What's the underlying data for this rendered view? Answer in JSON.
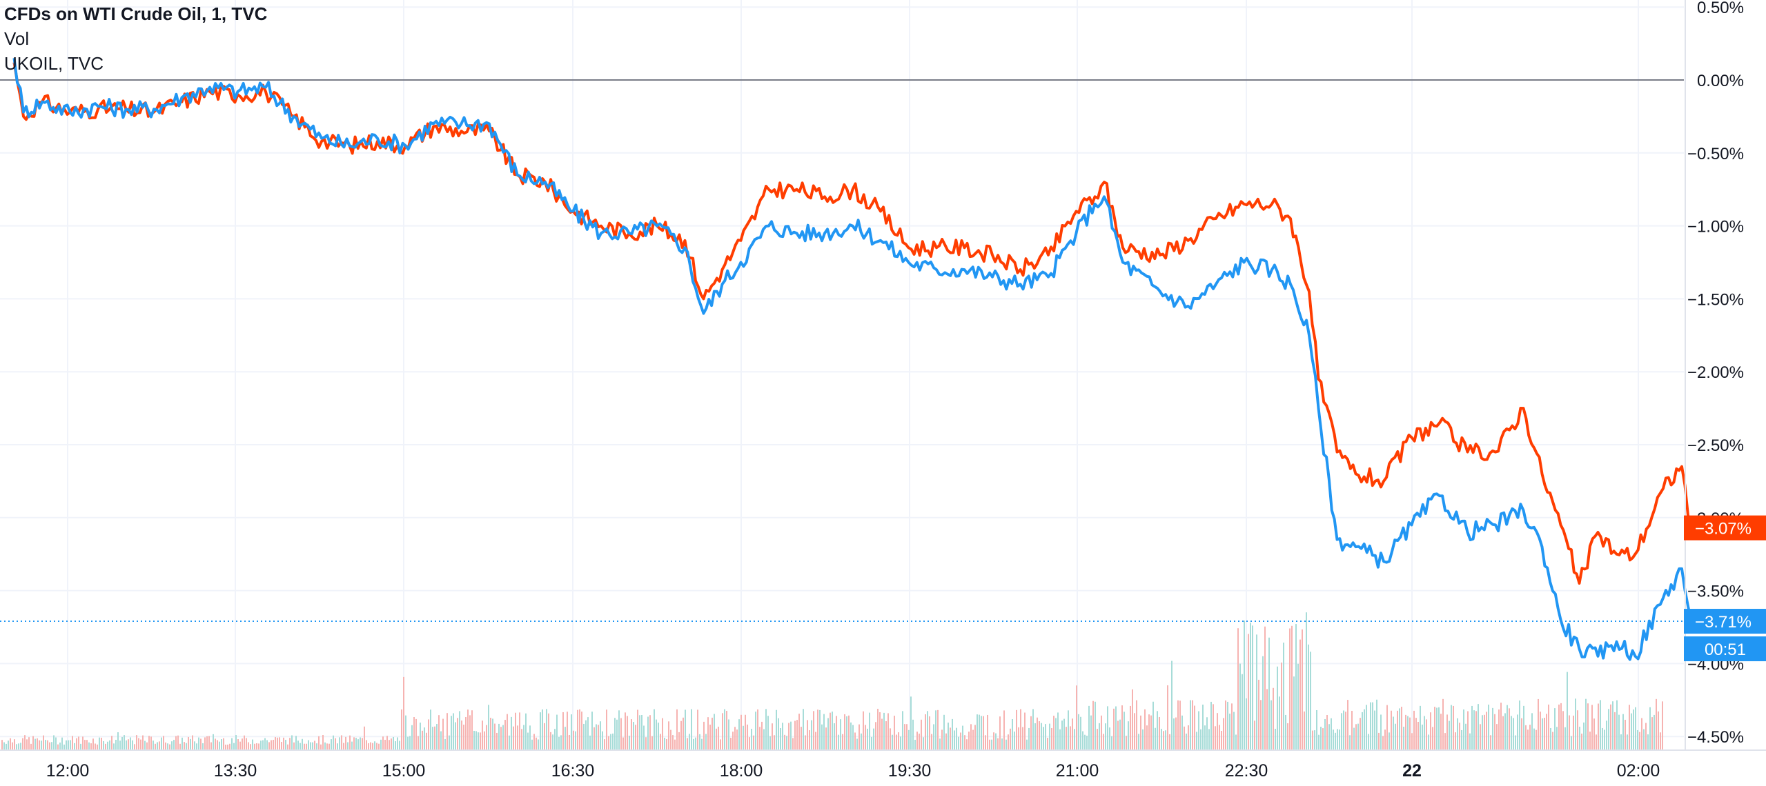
{
  "legend": {
    "title": "CFDs on WTI Crude Oil, 1, TVC",
    "volume": "Vol",
    "compare": "UKOIL, TVC"
  },
  "price_label_wti": "−3.71%",
  "price_label_ukoil": "−3.07%",
  "countdown": "00:51",
  "colors": {
    "wti": "#2196f3",
    "ukoil": "#ff3d00",
    "grid": "#f0f3fa",
    "axis_text": "#131722",
    "zero_line": "#787b86",
    "vol_up": "#a7dcd8",
    "vol_down": "#f6b3b1"
  },
  "chart_data": {
    "type": "line",
    "y_axis": {
      "unit": "%",
      "ticks": [
        "0.50%",
        "0.00%",
        "−0.50%",
        "−1.00%",
        "−1.50%",
        "−2.00%",
        "−2.50%",
        "−3.00%",
        "−3.50%",
        "−4.00%",
        "−4.50%"
      ],
      "values": [
        0.5,
        0.0,
        -0.5,
        -1.0,
        -1.5,
        -2.0,
        -2.5,
        -3.0,
        -3.5,
        -4.0,
        -4.5
      ],
      "range": [
        -4.55,
        0.55
      ]
    },
    "x_axis": {
      "ticks": [
        "12:00",
        "13:30",
        "15:00",
        "16:30",
        "18:00",
        "19:30",
        "21:00",
        "22:30",
        "22",
        "02:00"
      ],
      "bold_ticks": [
        "22"
      ]
    },
    "series": [
      {
        "name": "CFDs on WTI Crude Oil",
        "color": "#2196f3",
        "points": [
          [
            "11:15",
            0.15
          ],
          [
            "11:20",
            -0.22
          ],
          [
            "11:30",
            -0.15
          ],
          [
            "11:45",
            -0.22
          ],
          [
            "12:00",
            -0.18
          ],
          [
            "12:15",
            -0.2
          ],
          [
            "12:30",
            -0.2
          ],
          [
            "12:45",
            -0.12
          ],
          [
            "13:00",
            -0.05
          ],
          [
            "13:15",
            -0.08
          ],
          [
            "13:30",
            -0.05
          ],
          [
            "13:45",
            -0.25
          ],
          [
            "14:00",
            -0.4
          ],
          [
            "14:15",
            -0.45
          ],
          [
            "14:30",
            -0.4
          ],
          [
            "14:45",
            -0.45
          ],
          [
            "15:00",
            -0.3
          ],
          [
            "15:15",
            -0.3
          ],
          [
            "15:30",
            -0.3
          ],
          [
            "15:45",
            -0.65
          ],
          [
            "16:00",
            -0.7
          ],
          [
            "16:15",
            -0.9
          ],
          [
            "16:30",
            -1.05
          ],
          [
            "16:45",
            -1.05
          ],
          [
            "17:00",
            -1.0
          ],
          [
            "17:15",
            -1.15
          ],
          [
            "17:25",
            -1.6
          ],
          [
            "17:35",
            -1.4
          ],
          [
            "17:45",
            -1.25
          ],
          [
            "18:00",
            -1.0
          ],
          [
            "18:15",
            -1.05
          ],
          [
            "18:30",
            -1.05
          ],
          [
            "18:45",
            -1.0
          ],
          [
            "19:00",
            -1.1
          ],
          [
            "19:15",
            -1.25
          ],
          [
            "19:30",
            -1.3
          ],
          [
            "19:45",
            -1.3
          ],
          [
            "20:00",
            -1.35
          ],
          [
            "20:15",
            -1.4
          ],
          [
            "20:30",
            -1.35
          ],
          [
            "20:45",
            -1.05
          ],
          [
            "20:55",
            -0.85
          ],
          [
            "21:00",
            -0.8
          ],
          [
            "21:10",
            -1.25
          ],
          [
            "21:30",
            -1.45
          ],
          [
            "21:45",
            -1.55
          ],
          [
            "22:00",
            -1.4
          ],
          [
            "22:15",
            -1.25
          ],
          [
            "22:30",
            -1.3
          ],
          [
            "22:40",
            -1.4
          ],
          [
            "22:50",
            -1.75
          ],
          [
            "22:55",
            -2.25
          ],
          [
            "23:05",
            -3.15
          ],
          [
            "23:15",
            -3.2
          ],
          [
            "23:30",
            -3.3
          ],
          [
            "23:45",
            -3.05
          ],
          [
            "00:00",
            -2.85
          ],
          [
            "00:15",
            -3.1
          ],
          [
            "00:30",
            -3.05
          ],
          [
            "00:45",
            -2.95
          ],
          [
            "00:55",
            -3.2
          ],
          [
            "01:05",
            -3.7
          ],
          [
            "01:15",
            -3.9
          ],
          [
            "01:25",
            -3.95
          ],
          [
            "01:35",
            -3.85
          ],
          [
            "01:45",
            -3.95
          ],
          [
            "02:00",
            -3.55
          ],
          [
            "02:10",
            -3.35
          ],
          [
            "02:15",
            -3.71
          ]
        ]
      },
      {
        "name": "UKOIL",
        "color": "#ff3d00",
        "points": [
          [
            "11:15",
            0.12
          ],
          [
            "11:20",
            -0.25
          ],
          [
            "11:30",
            -0.15
          ],
          [
            "11:45",
            -0.22
          ],
          [
            "12:00",
            -0.2
          ],
          [
            "12:15",
            -0.2
          ],
          [
            "12:30",
            -0.22
          ],
          [
            "12:45",
            -0.15
          ],
          [
            "13:00",
            -0.08
          ],
          [
            "13:15",
            -0.1
          ],
          [
            "13:30",
            -0.08
          ],
          [
            "13:45",
            -0.25
          ],
          [
            "14:00",
            -0.42
          ],
          [
            "14:15",
            -0.45
          ],
          [
            "14:30",
            -0.42
          ],
          [
            "14:45",
            -0.45
          ],
          [
            "15:00",
            -0.32
          ],
          [
            "15:15",
            -0.35
          ],
          [
            "15:30",
            -0.35
          ],
          [
            "15:45",
            -0.65
          ],
          [
            "16:00",
            -0.7
          ],
          [
            "16:15",
            -0.9
          ],
          [
            "16:30",
            -1.0
          ],
          [
            "16:45",
            -1.05
          ],
          [
            "17:00",
            -1.0
          ],
          [
            "17:15",
            -1.1
          ],
          [
            "17:25",
            -1.5
          ],
          [
            "17:35",
            -1.3
          ],
          [
            "17:45",
            -1.1
          ],
          [
            "18:00",
            -0.75
          ],
          [
            "18:15",
            -0.75
          ],
          [
            "18:30",
            -0.8
          ],
          [
            "18:45",
            -0.75
          ],
          [
            "19:00",
            -0.9
          ],
          [
            "19:15",
            -1.15
          ],
          [
            "19:30",
            -1.15
          ],
          [
            "19:45",
            -1.15
          ],
          [
            "20:00",
            -1.2
          ],
          [
            "20:15",
            -1.3
          ],
          [
            "20:30",
            -1.2
          ],
          [
            "20:45",
            -0.9
          ],
          [
            "20:55",
            -0.8
          ],
          [
            "21:00",
            -0.7
          ],
          [
            "21:10",
            -1.15
          ],
          [
            "21:30",
            -1.2
          ],
          [
            "21:45",
            -1.1
          ],
          [
            "22:00",
            -0.95
          ],
          [
            "22:15",
            -0.85
          ],
          [
            "22:30",
            -0.85
          ],
          [
            "22:40",
            -0.95
          ],
          [
            "22:50",
            -1.45
          ],
          [
            "22:55",
            -2.05
          ],
          [
            "23:05",
            -2.55
          ],
          [
            "23:15",
            -2.7
          ],
          [
            "23:30",
            -2.75
          ],
          [
            "23:45",
            -2.45
          ],
          [
            "00:00",
            -2.35
          ],
          [
            "00:15",
            -2.55
          ],
          [
            "00:30",
            -2.55
          ],
          [
            "00:45",
            -2.25
          ],
          [
            "00:55",
            -2.7
          ],
          [
            "01:05",
            -3.05
          ],
          [
            "01:15",
            -3.45
          ],
          [
            "01:25",
            -3.1
          ],
          [
            "01:35",
            -3.25
          ],
          [
            "01:45",
            -3.25
          ],
          [
            "02:00",
            -2.8
          ],
          [
            "02:10",
            -2.65
          ],
          [
            "02:15",
            -3.07
          ]
        ]
      }
    ],
    "zero_line": true,
    "grid": true,
    "volume_pane": true,
    "legend_position": "top-left"
  }
}
